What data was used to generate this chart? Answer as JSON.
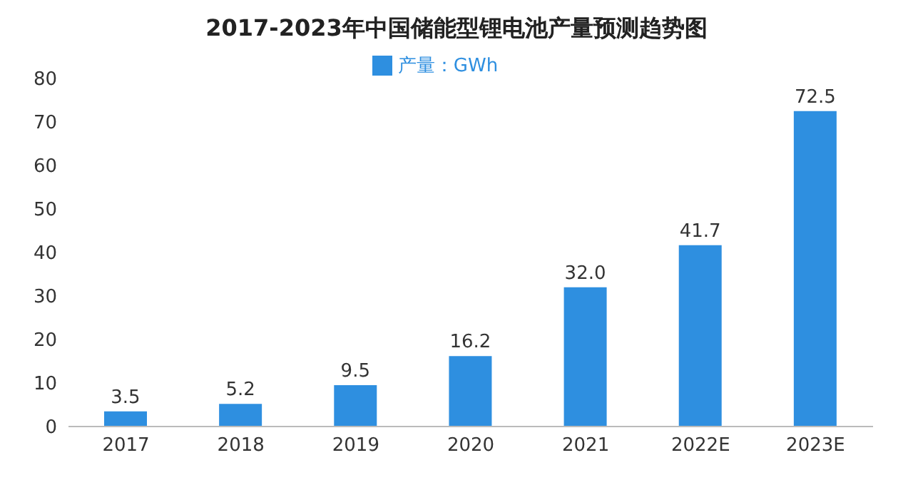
{
  "chart_data": {
    "type": "bar",
    "title": "2017-2023年中国储能型锂电池产量预测趋势图",
    "categories": [
      "2017",
      "2018",
      "2019",
      "2020",
      "2021",
      "2022E",
      "2023E"
    ],
    "series": [
      {
        "name": "产量：GWh",
        "color": "#2e8fe0",
        "values": [
          3.5,
          5.2,
          9.5,
          16.2,
          32.0,
          41.7,
          72.5
        ]
      }
    ],
    "value_labels": [
      "3.5",
      "5.2",
      "9.5",
      "16.2",
      "32.0",
      "41.7",
      "72.5"
    ],
    "ylim": [
      0,
      80
    ],
    "yticks": [
      0,
      10,
      20,
      30,
      40,
      50,
      60,
      70,
      80
    ],
    "grid": false,
    "legend": "top"
  }
}
